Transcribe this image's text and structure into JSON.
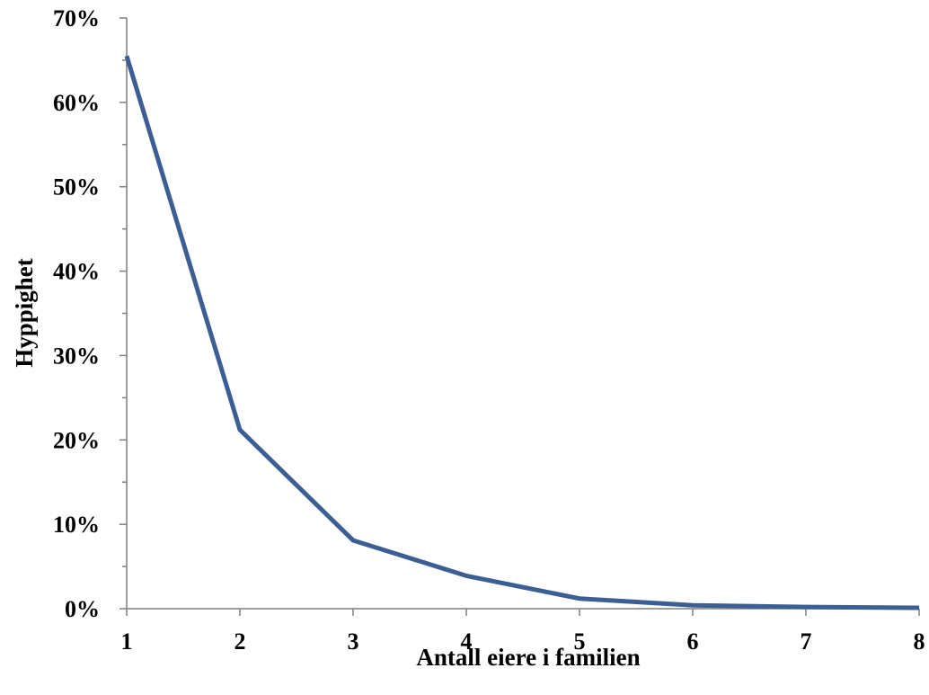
{
  "chart_data": {
    "type": "line",
    "title": "",
    "xlabel": "Antall eiere i familien",
    "ylabel": "Hyppighet",
    "x": [
      1,
      2,
      3,
      4,
      5,
      6,
      7,
      8
    ],
    "x_ticks": [
      "1",
      "2",
      "3",
      "4",
      "5",
      "6",
      "7",
      "8"
    ],
    "y_ticks": [
      "0%",
      "10%",
      "20%",
      "30%",
      "40%",
      "50%",
      "60%",
      "70%"
    ],
    "ylim": [
      0,
      70
    ],
    "series": [
      {
        "values": [
          65.5,
          21.2,
          8.1,
          3.9,
          1.2,
          0.4,
          0.2,
          0.1
        ],
        "color": "#3b5f94"
      }
    ],
    "grid": false,
    "legend": "none"
  }
}
